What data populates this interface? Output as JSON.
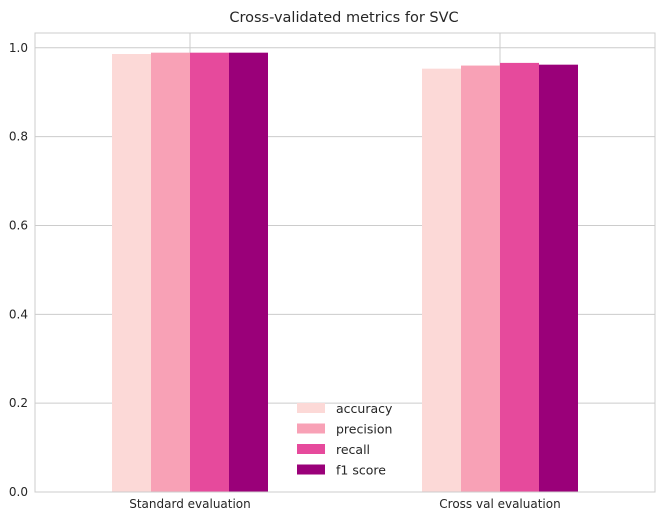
{
  "chart_data": {
    "type": "bar",
    "title": "Cross-validated metrics for SVC",
    "xlabel": "",
    "ylabel": "",
    "categories": [
      "Standard evaluation",
      "Cross val evaluation"
    ],
    "series": [
      {
        "name": "accuracy",
        "color": "#fcd9d7",
        "values": [
          0.986,
          0.953
        ]
      },
      {
        "name": "precision",
        "color": "#f8a1b6",
        "values": [
          0.989,
          0.96
        ]
      },
      {
        "name": "recall",
        "color": "#e64a9c",
        "values": [
          0.989,
          0.966
        ]
      },
      {
        "name": "f1 score",
        "color": "#9a0079",
        "values": [
          0.989,
          0.962
        ]
      }
    ],
    "ylim": [
      0,
      1.0333
    ],
    "yticks": [
      0.0,
      0.2,
      0.4,
      0.6,
      0.8,
      1.0
    ],
    "ytick_labels": [
      "0.0",
      "0.2",
      "0.4",
      "0.6",
      "0.8",
      "1.0"
    ],
    "grid": true,
    "legend_position": "lower-center"
  }
}
